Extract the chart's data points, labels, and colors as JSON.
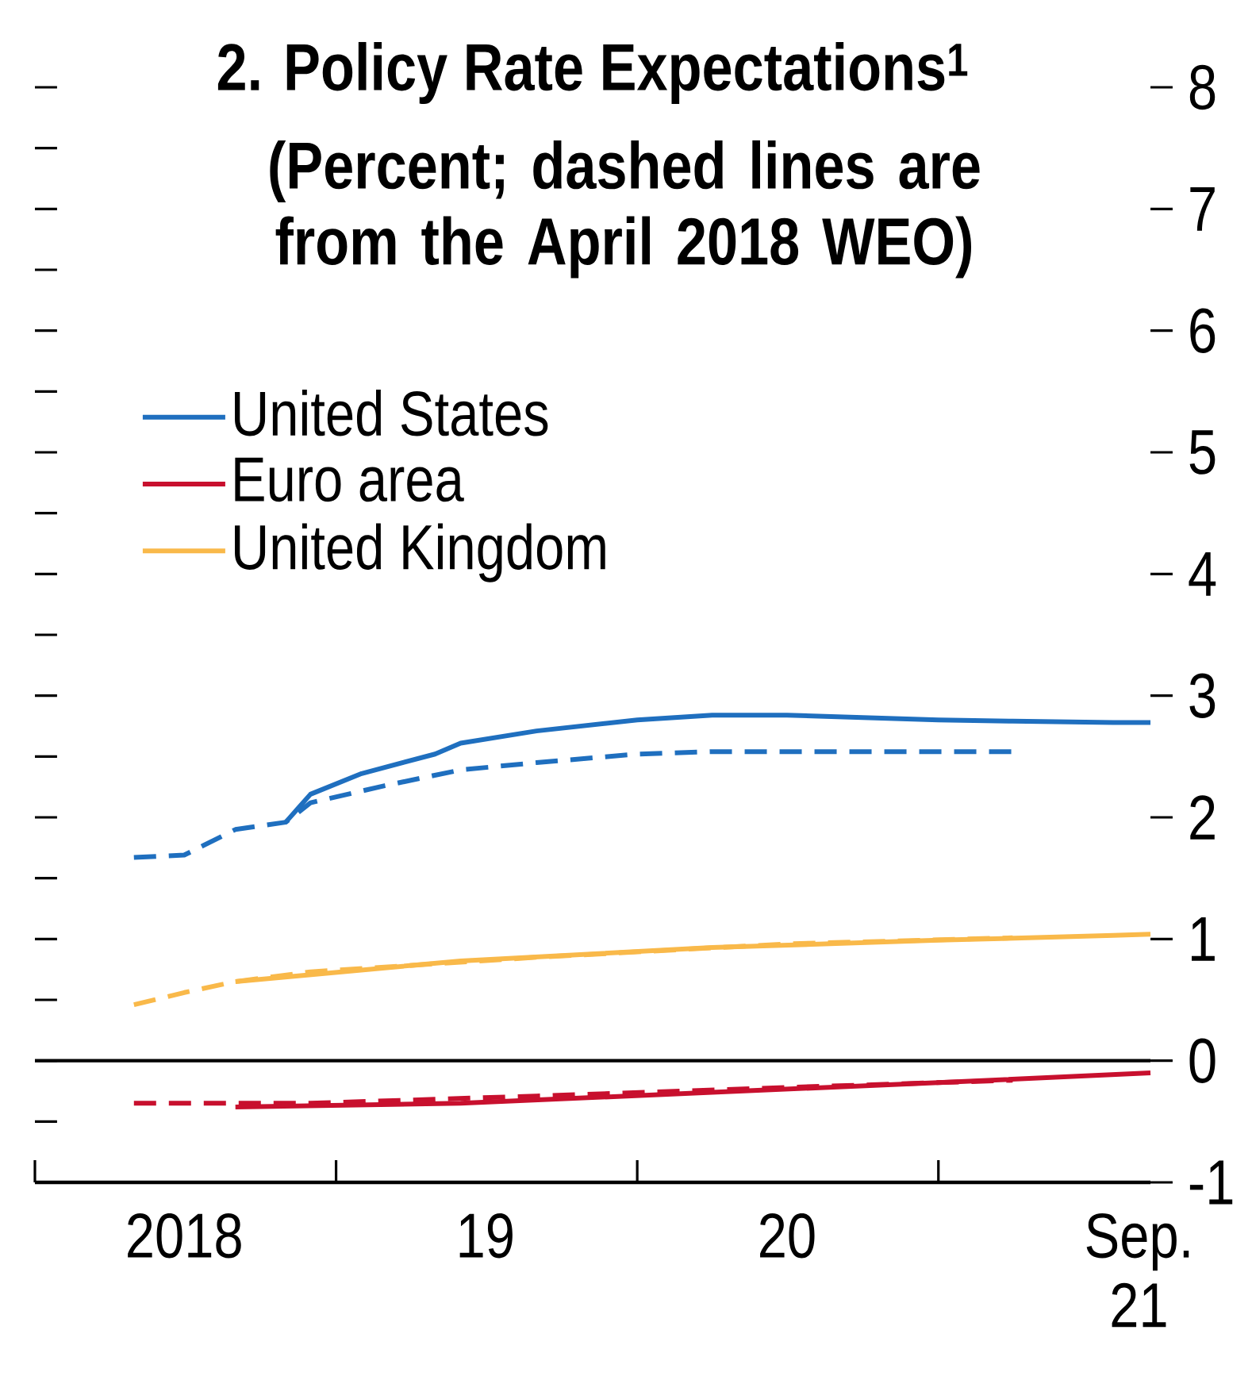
{
  "chart_data": {
    "type": "line",
    "title": "2. Policy Rate Expectations$^{1}$",
    "subtitle": "(Percent; dashed lines are from the April 2018 WEO)",
    "series": [
      {
        "name": "United States",
        "color": "#1f6fbf",
        "line_style": "solid",
        "x": [
          "2018-11-01",
          "2018-12-01",
          "2019-02-01",
          "2019-05-01",
          "2019-06-01",
          "2019-09-01",
          "2020-01-01",
          "2020-04-01",
          "2020-07-01",
          "2020-10-01",
          "2021-01-01",
          "2021-04-01",
          "2021-08-01",
          "2021-09-15"
        ],
        "values": [
          1.96,
          2.19,
          2.36,
          2.52,
          2.61,
          2.71,
          2.8,
          2.84,
          2.84,
          2.82,
          2.8,
          2.79,
          2.78,
          2.78
        ]
      },
      {
        "name": "Euro area",
        "color": "#c8102e",
        "line_style": "solid",
        "x": [
          "2018-09-01",
          "2019-06-01",
          "2020-04-01",
          "2021-01-01",
          "2021-09-15"
        ],
        "values": [
          -0.38,
          -0.35,
          -0.26,
          -0.18,
          -0.1
        ]
      },
      {
        "name": "United Kingdom",
        "color": "#f9b94a",
        "line_style": "solid",
        "x": [
          "2018-09-01",
          "2019-06-01",
          "2020-04-01",
          "2021-01-01",
          "2021-08-01",
          "2021-09-15"
        ],
        "values": [
          0.65,
          0.82,
          0.93,
          0.99,
          1.03,
          1.04
        ]
      },
      {
        "color": "#1f6fbf",
        "line_style": "dashed",
        "x": [
          "2018-05-01",
          "2018-07-01",
          "2018-09-01",
          "2018-11-01",
          "2018-12-01",
          "2019-03-01",
          "2019-06-01",
          "2019-09-01",
          "2020-01-01",
          "2020-04-01",
          "2020-07-01",
          "2021-04-01"
        ],
        "values": [
          1.67,
          1.69,
          1.9,
          1.96,
          2.12,
          2.26,
          2.39,
          2.45,
          2.52,
          2.54,
          2.54,
          2.54
        ]
      },
      {
        "color": "#c8102e",
        "line_style": "dashed",
        "x": [
          "2018-05-01",
          "2018-12-01",
          "2019-09-01",
          "2020-07-01",
          "2021-04-01"
        ],
        "values": [
          -0.35,
          -0.35,
          -0.29,
          -0.22,
          -0.16
        ]
      },
      {
        "color": "#f9b94a",
        "line_style": "dashed",
        "x": [
          "2018-05-01",
          "2018-07-01",
          "2018-09-01",
          "2018-12-01",
          "2019-09-01",
          "2020-07-01",
          "2021-04-01"
        ],
        "values": [
          0.46,
          0.56,
          0.65,
          0.73,
          0.85,
          0.96,
          1.01
        ]
      }
    ],
    "xlim": [
      "2018-01-01",
      "2021-09-15"
    ],
    "xticks": [
      {
        "value": "2018-01-01",
        "label": null
      },
      {
        "value": "2018-07-01",
        "label": "2018"
      },
      {
        "value": "2019-01-01",
        "label": null
      },
      {
        "value": "2019-07-01",
        "label": "19"
      },
      {
        "value": "2020-01-01",
        "label": null
      },
      {
        "value": "2020-07-01",
        "label": "20"
      },
      {
        "value": "2021-01-01",
        "label": null
      },
      {
        "value": "2021-09-01",
        "label": "Sep. 21"
      }
    ],
    "ylim": [
      -1,
      8
    ],
    "yticks": [
      -1,
      {
        "value": -0.5,
        "label": null
      },
      0,
      {
        "value": 0.5,
        "label": null
      },
      1,
      {
        "value": 1.5,
        "label": null
      },
      2,
      {
        "value": 2.5,
        "label": null
      },
      3,
      {
        "value": 3.5,
        "label": null
      },
      4,
      {
        "value": 4.5,
        "label": null
      },
      5,
      {
        "value": 5.5,
        "label": null
      },
      6,
      {
        "value": 6.5,
        "label": null
      },
      7,
      {
        "value": 7.5,
        "label": null
      },
      8
    ],
    "ref_lines": [
      {
        "axis": "y",
        "value": 0,
        "color": "#000000"
      }
    ],
    "legend": "top left",
    "grid": false
  }
}
